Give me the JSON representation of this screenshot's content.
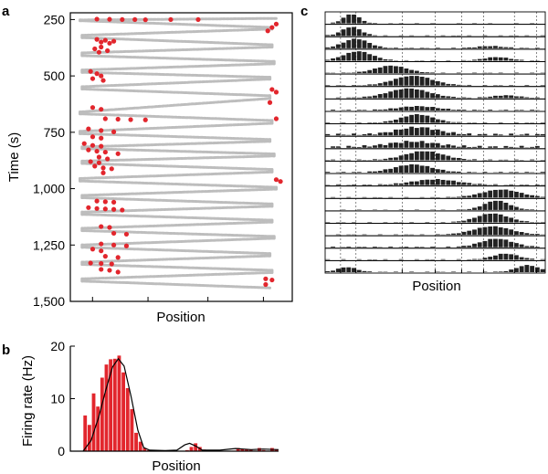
{
  "chart_data": [
    {
      "id": "a",
      "panel_label": "a",
      "type": "scatter",
      "title": "",
      "xlabel": "Position",
      "ylabel": "Time (s)",
      "ylim": [
        220,
        1500
      ],
      "y_inverted": true,
      "xlim": [
        0,
        1
      ],
      "y_ticks": [
        250,
        500,
        750,
        1000,
        1250,
        1500
      ],
      "y_tick_labels": [
        "250",
        "500",
        "750",
        "1,000",
        "1,250",
        "1,500"
      ],
      "x_ticks": [
        0.1,
        0.35,
        0.62,
        0.87
      ],
      "grid": false,
      "series": [
        {
          "name": "trajectory",
          "color": "#bdbdbd"
        },
        {
          "name": "spikes",
          "color": "#e2262d"
        }
      ],
      "laps": [
        {
          "t0": 245,
          "t1": 252,
          "x0": 0.95,
          "x1": 0.02
        },
        {
          "t0": 255,
          "t1": 285,
          "x0": 0.02,
          "x1": 0.93
        },
        {
          "t0": 292,
          "t1": 320,
          "x0": 0.93,
          "x1": 0.03
        },
        {
          "t0": 330,
          "t1": 362,
          "x0": 0.03,
          "x1": 0.93
        },
        {
          "t0": 372,
          "t1": 398,
          "x0": 0.93,
          "x1": 0.03
        },
        {
          "t0": 410,
          "t1": 436,
          "x0": 0.03,
          "x1": 0.94
        },
        {
          "t0": 446,
          "t1": 474,
          "x0": 0.94,
          "x1": 0.03
        },
        {
          "t0": 484,
          "t1": 506,
          "x0": 0.03,
          "x1": 0.92
        },
        {
          "t0": 514,
          "t1": 548,
          "x0": 0.92,
          "x1": 0.03
        },
        {
          "t0": 558,
          "t1": 588,
          "x0": 0.03,
          "x1": 0.92
        },
        {
          "t0": 600,
          "t1": 660,
          "x0": 0.92,
          "x1": 0.02
        },
        {
          "t0": 668,
          "t1": 698,
          "x0": 0.02,
          "x1": 0.93
        },
        {
          "t0": 710,
          "t1": 746,
          "x0": 0.93,
          "x1": 0.02
        },
        {
          "t0": 756,
          "t1": 782,
          "x0": 0.02,
          "x1": 0.92
        },
        {
          "t0": 790,
          "t1": 815,
          "x0": 0.92,
          "x1": 0.03
        },
        {
          "t0": 822,
          "t1": 846,
          "x0": 0.03,
          "x1": 0.94
        },
        {
          "t0": 855,
          "t1": 878,
          "x0": 0.94,
          "x1": 0.03
        },
        {
          "t0": 888,
          "t1": 915,
          "x0": 0.03,
          "x1": 0.93
        },
        {
          "t0": 926,
          "t1": 955,
          "x0": 0.93,
          "x1": 0.02
        },
        {
          "t0": 966,
          "t1": 994,
          "x0": 0.02,
          "x1": 0.95
        },
        {
          "t0": 1002,
          "t1": 1030,
          "x0": 0.95,
          "x1": 0.03
        },
        {
          "t0": 1040,
          "t1": 1068,
          "x0": 0.03,
          "x1": 0.93
        },
        {
          "t0": 1078,
          "t1": 1104,
          "x0": 0.93,
          "x1": 0.03
        },
        {
          "t0": 1114,
          "t1": 1140,
          "x0": 0.03,
          "x1": 0.93
        },
        {
          "t0": 1148,
          "t1": 1176,
          "x0": 0.93,
          "x1": 0.03
        },
        {
          "t0": 1186,
          "t1": 1212,
          "x0": 0.03,
          "x1": 0.94
        },
        {
          "t0": 1220,
          "t1": 1250,
          "x0": 0.94,
          "x1": 0.03
        },
        {
          "t0": 1260,
          "t1": 1288,
          "x0": 0.03,
          "x1": 0.92
        },
        {
          "t0": 1298,
          "t1": 1326,
          "x0": 0.92,
          "x1": 0.03
        },
        {
          "t0": 1336,
          "t1": 1362,
          "x0": 0.03,
          "x1": 0.93
        },
        {
          "t0": 1372,
          "t1": 1400,
          "x0": 0.93,
          "x1": 0.03
        },
        {
          "t0": 1410,
          "t1": 1440,
          "x0": 0.03,
          "x1": 0.92
        }
      ],
      "spikes": [
        {
          "t": 248,
          "x": 0.1
        },
        {
          "t": 249,
          "x": 0.16
        },
        {
          "t": 250,
          "x": 0.22
        },
        {
          "t": 250,
          "x": 0.28
        },
        {
          "t": 251,
          "x": 0.33
        },
        {
          "t": 250,
          "x": 0.45
        },
        {
          "t": 250,
          "x": 0.58
        },
        {
          "t": 270,
          "x": 0.95
        },
        {
          "t": 285,
          "x": 0.93
        },
        {
          "t": 300,
          "x": 0.91
        },
        {
          "t": 338,
          "x": 0.1
        },
        {
          "t": 342,
          "x": 0.14
        },
        {
          "t": 346,
          "x": 0.18
        },
        {
          "t": 350,
          "x": 0.12
        },
        {
          "t": 355,
          "x": 0.16
        },
        {
          "t": 372,
          "x": 0.12
        },
        {
          "t": 380,
          "x": 0.09
        },
        {
          "t": 388,
          "x": 0.15
        },
        {
          "t": 395,
          "x": 0.11
        },
        {
          "t": 480,
          "x": 0.07
        },
        {
          "t": 490,
          "x": 0.1
        },
        {
          "t": 500,
          "x": 0.12
        },
        {
          "t": 512,
          "x": 0.08
        },
        {
          "t": 520,
          "x": 0.13
        },
        {
          "t": 560,
          "x": 0.93
        },
        {
          "t": 572,
          "x": 0.95
        },
        {
          "t": 618,
          "x": 0.92
        },
        {
          "t": 640,
          "x": 0.08
        },
        {
          "t": 648,
          "x": 0.12
        },
        {
          "t": 690,
          "x": 0.14
        },
        {
          "t": 692,
          "x": 0.2
        },
        {
          "t": 694,
          "x": 0.26
        },
        {
          "t": 695,
          "x": 0.33
        },
        {
          "t": 690,
          "x": 0.95
        },
        {
          "t": 735,
          "x": 0.06
        },
        {
          "t": 742,
          "x": 0.12
        },
        {
          "t": 748,
          "x": 0.18
        },
        {
          "t": 770,
          "x": 0.08
        },
        {
          "t": 776,
          "x": 0.12
        },
        {
          "t": 800,
          "x": 0.04
        },
        {
          "t": 808,
          "x": 0.08
        },
        {
          "t": 812,
          "x": 0.12
        },
        {
          "t": 828,
          "x": 0.06
        },
        {
          "t": 834,
          "x": 0.1
        },
        {
          "t": 838,
          "x": 0.14
        },
        {
          "t": 845,
          "x": 0.2
        },
        {
          "t": 860,
          "x": 0.11
        },
        {
          "t": 868,
          "x": 0.15
        },
        {
          "t": 880,
          "x": 0.07
        },
        {
          "t": 885,
          "x": 0.11
        },
        {
          "t": 900,
          "x": 0.09
        },
        {
          "t": 908,
          "x": 0.13
        },
        {
          "t": 912,
          "x": 0.17
        },
        {
          "t": 930,
          "x": 0.13
        },
        {
          "t": 960,
          "x": 0.95
        },
        {
          "t": 968,
          "x": 0.97
        },
        {
          "t": 1055,
          "x": 0.1
        },
        {
          "t": 1058,
          "x": 0.14
        },
        {
          "t": 1060,
          "x": 0.18
        },
        {
          "t": 1084,
          "x": 0.06
        },
        {
          "t": 1088,
          "x": 0.1
        },
        {
          "t": 1090,
          "x": 0.14
        },
        {
          "t": 1092,
          "x": 0.18
        },
        {
          "t": 1095,
          "x": 0.22
        },
        {
          "t": 1168,
          "x": 0.12
        },
        {
          "t": 1172,
          "x": 0.16
        },
        {
          "t": 1198,
          "x": 0.18
        },
        {
          "t": 1202,
          "x": 0.24
        },
        {
          "t": 1245,
          "x": 0.12
        },
        {
          "t": 1250,
          "x": 0.18
        },
        {
          "t": 1254,
          "x": 0.24
        },
        {
          "t": 1268,
          "x": 0.08
        },
        {
          "t": 1276,
          "x": 0.12
        },
        {
          "t": 1300,
          "x": 0.14
        },
        {
          "t": 1305,
          "x": 0.2
        },
        {
          "t": 1330,
          "x": 0.07
        },
        {
          "t": 1332,
          "x": 0.12
        },
        {
          "t": 1334,
          "x": 0.17
        },
        {
          "t": 1358,
          "x": 0.12
        },
        {
          "t": 1362,
          "x": 0.16
        },
        {
          "t": 1370,
          "x": 0.2
        },
        {
          "t": 1400,
          "x": 0.9
        },
        {
          "t": 1405,
          "x": 0.93
        },
        {
          "t": 1425,
          "x": 0.9
        }
      ]
    },
    {
      "id": "b",
      "panel_label": "b",
      "type": "bar",
      "title": "",
      "xlabel": "Position",
      "ylabel": "Firing rate (Hz)",
      "xlim": [
        0,
        1
      ],
      "ylim": [
        0,
        20
      ],
      "y_ticks": [
        0,
        10,
        20
      ],
      "y_tick_labels": [
        "0",
        "10",
        "20"
      ],
      "grid": false,
      "bar_color": "#e2262d",
      "curve_color": "#000000",
      "values": [
        6.8,
        5.0,
        11.0,
        8.5,
        14.0,
        16.5,
        17.5,
        17.6,
        18.2,
        15.0,
        12.0,
        8.0,
        3.5,
        1.8,
        0.6,
        0.2,
        0,
        0,
        0,
        0,
        0,
        0,
        0,
        0,
        0.2,
        0.8,
        1.5,
        0.8,
        0.3,
        0,
        0,
        0,
        0,
        0,
        0,
        0.1,
        0.6,
        0.4,
        0.3,
        0.3,
        0.1,
        0.6,
        0.2,
        0.1,
        0.6,
        0.3
      ],
      "curve": [
        {
          "x": 0.0,
          "y": 0.0
        },
        {
          "x": 0.04,
          "y": 2.0
        },
        {
          "x": 0.08,
          "y": 6.5
        },
        {
          "x": 0.115,
          "y": 11.5
        },
        {
          "x": 0.15,
          "y": 16.0
        },
        {
          "x": 0.18,
          "y": 17.6
        },
        {
          "x": 0.21,
          "y": 16.2
        },
        {
          "x": 0.245,
          "y": 10.5
        },
        {
          "x": 0.28,
          "y": 4.0
        },
        {
          "x": 0.31,
          "y": 0.7
        },
        {
          "x": 0.34,
          "y": 0.2
        },
        {
          "x": 0.42,
          "y": 0.1
        },
        {
          "x": 0.48,
          "y": 0.2
        },
        {
          "x": 0.52,
          "y": 1.2
        },
        {
          "x": 0.545,
          "y": 1.5
        },
        {
          "x": 0.575,
          "y": 1.0
        },
        {
          "x": 0.61,
          "y": 0.2
        },
        {
          "x": 0.7,
          "y": 0.2
        },
        {
          "x": 0.78,
          "y": 0.5
        },
        {
          "x": 0.86,
          "y": 0.3
        },
        {
          "x": 0.92,
          "y": 0.4
        },
        {
          "x": 1.0,
          "y": 0.3
        }
      ]
    },
    {
      "id": "c",
      "panel_label": "c",
      "type": "bar",
      "title": "",
      "xlabel": "Position",
      "ylabel": "",
      "grid": true,
      "bar_color": "#222222",
      "dashed_gridlines_at": [
        0.07,
        0.14,
        0.35,
        0.5,
        0.62,
        0.72,
        0.86,
        0.96
      ],
      "rows": [
        {
          "center": 0.12,
          "width": 0.05,
          "peak": 0.95,
          "tail": 0.04
        },
        {
          "center": 0.12,
          "width": 0.06,
          "peak": 0.9,
          "tail": 0.05
        },
        {
          "center": 0.14,
          "width": 0.08,
          "peak": 0.95,
          "tail": 0.06,
          "center2": 0.75,
          "width2": 0.08,
          "peak2": 0.2
        },
        {
          "center": 0.15,
          "width": 0.09,
          "peak": 0.95,
          "tail": 0.05,
          "center2": 0.78,
          "width2": 0.08,
          "peak2": 0.35
        },
        {
          "center": 0.3,
          "width": 0.1,
          "peak": 0.75,
          "tail": 0.05
        },
        {
          "center": 0.4,
          "width": 0.12,
          "peak": 1.0,
          "tail": 0.06
        },
        {
          "center": 0.38,
          "width": 0.13,
          "peak": 0.95,
          "tail": 0.06,
          "center2": 0.82,
          "width2": 0.08,
          "peak2": 0.25
        },
        {
          "center": 0.42,
          "width": 0.12,
          "peak": 0.4,
          "tail": 0.08
        },
        {
          "center": 0.42,
          "width": 0.1,
          "peak": 0.85,
          "tail": 0.06
        },
        {
          "center": 0.42,
          "width": 0.13,
          "peak": 0.75,
          "tail": 0.18
        },
        {
          "center": 0.4,
          "width": 0.15,
          "peak": 0.55,
          "tail": 0.2
        },
        {
          "center": 0.45,
          "width": 0.12,
          "peak": 0.9,
          "tail": 0.08
        },
        {
          "center": 0.4,
          "width": 0.12,
          "peak": 0.8,
          "tail": 0.08
        },
        {
          "center": 0.5,
          "width": 0.14,
          "peak": 0.55,
          "tail": 0.08
        },
        {
          "center": 0.8,
          "width": 0.12,
          "peak": 0.8,
          "tail": 0.05
        },
        {
          "center": 0.78,
          "width": 0.08,
          "peak": 0.95,
          "tail": 0.04
        },
        {
          "center": 0.76,
          "width": 0.1,
          "peak": 0.9,
          "tail": 0.05
        },
        {
          "center": 0.76,
          "width": 0.12,
          "peak": 0.85,
          "tail": 0.05
        },
        {
          "center": 0.78,
          "width": 0.1,
          "peak": 0.85,
          "tail": 0.08
        },
        {
          "center": 0.82,
          "width": 0.08,
          "peak": 0.6,
          "tail": 0.06
        },
        {
          "center": 0.92,
          "width": 0.07,
          "peak": 0.7,
          "tail": 0.05,
          "center2": 0.1,
          "width2": 0.06,
          "peak2": 0.5
        }
      ]
    }
  ]
}
